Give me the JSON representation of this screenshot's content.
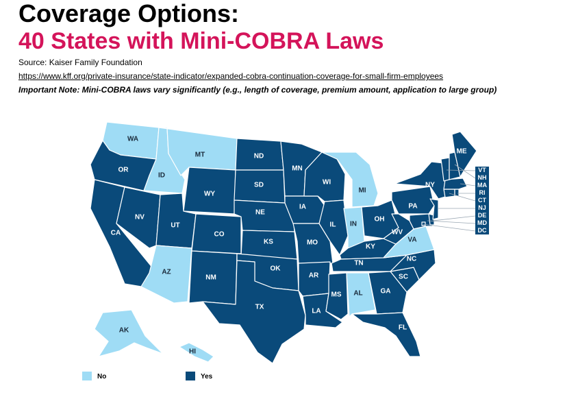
{
  "header": {
    "title": "Coverage Options:",
    "subtitle": "40 States with Mini-COBRA Laws",
    "source": "Source: Kaiser Family Foundation",
    "url": "https://www.kff.org/private-insurance/state-indicator/expanded-cobra-continuation-coverage-for-small-firm-employees",
    "note": "Important Note: Mini-COBRA laws vary significantly (e.g., length of coverage, premium amount, application to large group)"
  },
  "colors": {
    "yes": "#0a4a7a",
    "no": "#9fdcf5"
  },
  "legend": {
    "no_label": "No",
    "yes_label": "Yes"
  },
  "states": {
    "WA": "No",
    "OR": "Yes",
    "CA": "Yes",
    "ID": "No",
    "NV": "Yes",
    "MT": "No",
    "WY": "Yes",
    "UT": "Yes",
    "AZ": "No",
    "CO": "Yes",
    "NM": "Yes",
    "ND": "Yes",
    "SD": "Yes",
    "NE": "Yes",
    "KS": "Yes",
    "OK": "Yes",
    "TX": "Yes",
    "MN": "Yes",
    "IA": "Yes",
    "MO": "Yes",
    "AR": "Yes",
    "LA": "Yes",
    "WI": "Yes",
    "IL": "Yes",
    "MI": "No",
    "IN": "No",
    "OH": "Yes",
    "KY": "Yes",
    "TN": "Yes",
    "MS": "Yes",
    "AL": "No",
    "GA": "Yes",
    "FL": "Yes",
    "SC": "Yes",
    "NC": "Yes",
    "VA": "No",
    "WV": "Yes",
    "PA": "Yes",
    "NY": "Yes",
    "ME": "Yes",
    "AK": "No",
    "HI": "No",
    "VT": "Yes",
    "NH": "Yes",
    "MA": "Yes",
    "RI": "Yes",
    "CT": "Yes",
    "NJ": "Yes",
    "DE": "Yes",
    "MD": "Yes",
    "DC": "Yes"
  },
  "northeast_labels": [
    "VT",
    "NH",
    "MA",
    "RI",
    "CT",
    "NJ",
    "DE",
    "MD",
    "DC"
  ]
}
